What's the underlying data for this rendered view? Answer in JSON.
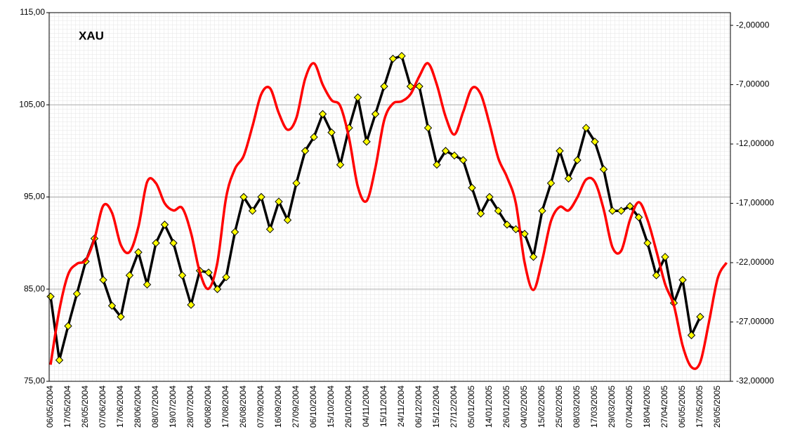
{
  "chart_data": {
    "type": "line",
    "title": "XAU",
    "categories": [
      "06/05/2004",
      null,
      "17/05/2004",
      null,
      "26/05/2004",
      null,
      "07/06/2004",
      null,
      "17/06/2004",
      null,
      "28/06/2004",
      null,
      "08/07/2004",
      null,
      "19/07/2004",
      null,
      "28/07/2004",
      null,
      "06/08/2004",
      null,
      "17/08/2004",
      null,
      "26/08/2004",
      null,
      "07/09/2004",
      null,
      "16/09/2004",
      null,
      "27/09/2004",
      null,
      "06/10/2004",
      null,
      "15/10/2004",
      null,
      "26/10/2004",
      null,
      "04/11/2004",
      null,
      "15/11/2004",
      null,
      "24/11/2004",
      null,
      "06/12/2004",
      null,
      "15/12/2004",
      null,
      "27/12/2004",
      null,
      "05/01/2005",
      null,
      "14/01/2005",
      null,
      "26/01/2005",
      null,
      "04/02/2005",
      null,
      "15/02/2005",
      null,
      "25/02/2005",
      null,
      "08/03/2005",
      null,
      "17/03/2005",
      null,
      "29/03/2005",
      null,
      "07/04/2005",
      null,
      "18/04/2005",
      null,
      "27/04/2005",
      null,
      "06/05/2005",
      null,
      "17/05/2005",
      null,
      "26/05/2005",
      null
    ],
    "series": [
      {
        "color": "#000000",
        "marker_color": "#ffff00",
        "values": [
          84.2,
          77.3,
          81,
          84.5,
          88,
          90.5,
          86,
          83.2,
          82,
          86.5,
          89,
          85.5,
          90,
          92,
          90,
          86.5,
          83.3,
          87,
          86.8,
          85,
          86.3,
          91.2,
          95,
          93.5,
          95,
          91.5,
          94.5,
          92.5,
          96.5,
          100,
          101.5,
          104,
          102,
          98.5,
          102.5,
          105.8,
          101,
          104,
          107,
          110,
          110.3,
          107,
          107,
          102.5,
          98.5,
          100,
          99.5,
          99,
          96,
          93.2,
          95,
          93.5,
          92,
          91.5,
          91,
          88.5,
          93.5,
          96.5,
          100,
          97,
          99,
          102.5,
          101,
          98,
          93.5,
          93.5,
          94,
          92.8,
          90,
          86.5,
          88.5,
          83.5,
          86,
          80,
          82,
          null,
          null,
          null
        ]
      },
      {
        "color": "#ff0000",
        "axis": "y2",
        "values": [
          -30.6,
          -26,
          -23,
          -22.1,
          -21.8,
          -20,
          -17.2,
          -17.8,
          -20.5,
          -21.1,
          -19,
          -15.2,
          -15.3,
          -17,
          -17.6,
          -17.4,
          -19.5,
          -22.8,
          -24.2,
          -22,
          -16.5,
          -14.1,
          -13,
          -10.5,
          -7.8,
          -7.3,
          -9.4,
          -10.8,
          -9.8,
          -6.5,
          -5.2,
          -7,
          -8.3,
          -8.8,
          -11.5,
          -15.6,
          -16.8,
          -14,
          -10,
          -8.6,
          -8.4,
          -7.8,
          -6.3,
          -5.2,
          -7,
          -9.7,
          -11.2,
          -9.3,
          -7.3,
          -7.8,
          -10.3,
          -13.2,
          -14.8,
          -17,
          -22,
          -24.3,
          -21.8,
          -18.5,
          -17.3,
          -17.6,
          -16.5,
          -15,
          -15.2,
          -17.5,
          -20.7,
          -21,
          -18.4,
          -16.9,
          -18.4,
          -21,
          -23.8,
          -25.6,
          -29,
          -30.8,
          -30.4,
          -27,
          -23.3,
          -22
        ]
      }
    ],
    "ylim": [
      75,
      115
    ],
    "yticks": [
      {
        "value": 75,
        "label": "75,00"
      },
      {
        "value": 85,
        "label": "85,00"
      },
      {
        "value": 95,
        "label": "95,00"
      },
      {
        "value": 105,
        "label": "105,00"
      },
      {
        "value": 115,
        "label": "115,00"
      }
    ],
    "y2lim": [
      -32,
      -0.93
    ],
    "y2ticks": [
      {
        "value": -2,
        "label": "-2,00000"
      },
      {
        "value": -7,
        "label": "-7,00000"
      },
      {
        "value": -12,
        "label": "-12,00000"
      },
      {
        "value": -17,
        "label": "-17,00000"
      },
      {
        "value": -22,
        "label": "-22,00000"
      },
      {
        "value": -27,
        "label": "-27,00000"
      },
      {
        "value": -32,
        "label": "-32,00000"
      }
    ],
    "grid": true
  }
}
